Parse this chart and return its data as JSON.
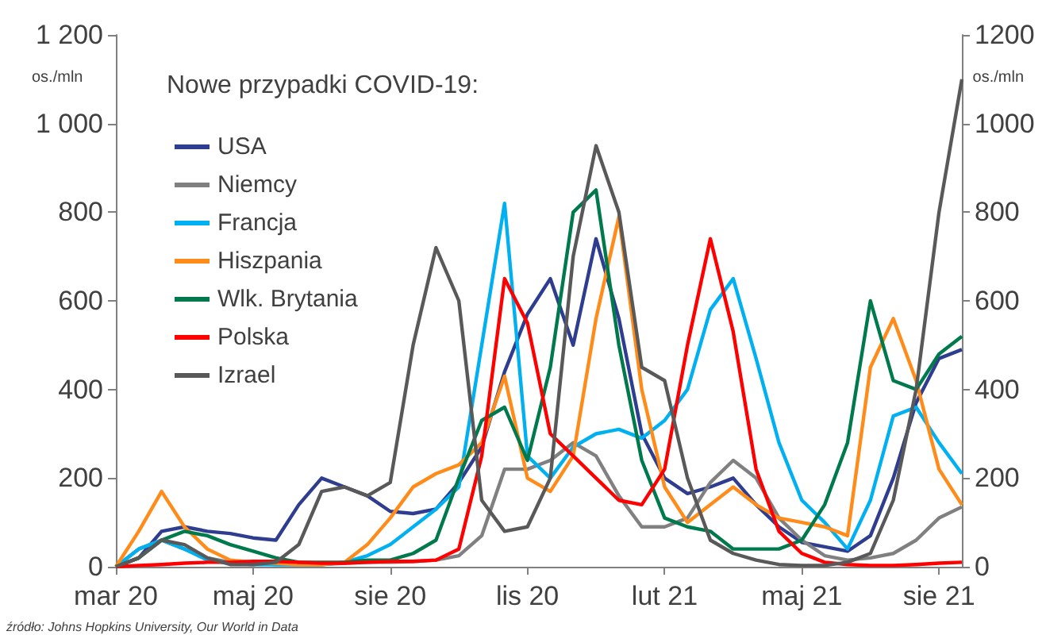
{
  "chart_data": {
    "type": "line",
    "legend_title": "Nowe przypadki COVID-19:",
    "ylabel": "os./mln",
    "y2label": "os./mln",
    "annotations": [
      "źródło: Johns Hopkins University, Our World in Data"
    ],
    "categories": [
      "mar 20",
      null,
      null,
      null,
      null,
      null,
      "maj 20",
      null,
      null,
      null,
      null,
      null,
      "sie 20",
      null,
      null,
      null,
      null,
      null,
      "lis 20",
      null,
      null,
      null,
      null,
      null,
      "lut 21",
      null,
      null,
      null,
      null,
      null,
      "maj 21",
      null,
      null,
      null,
      null,
      null,
      "sie 21",
      null
    ],
    "ylim": [
      0,
      1200
    ],
    "yticks": [
      0,
      200,
      400,
      600,
      800,
      {
        "value": 1000,
        "label": "1 000"
      },
      {
        "value": 1200,
        "label": "1 200"
      }
    ],
    "y2lim": [
      0,
      1200
    ],
    "y2ticks": [
      0,
      200,
      400,
      600,
      800,
      1000,
      1200
    ],
    "grid": false,
    "legend": "top left",
    "series": [
      {
        "name": "USA",
        "color": "#2e3d8f",
        "values": [
          0,
          20,
          80,
          90,
          80,
          75,
          65,
          60,
          140,
          200,
          180,
          160,
          125,
          120,
          130,
          190,
          270,
          440,
          570,
          650,
          500,
          740,
          560,
          300,
          200,
          165,
          180,
          200,
          140,
          90,
          55,
          45,
          35,
          70,
          200,
          370,
          470,
          490
        ]
      },
      {
        "name": "Niemcy",
        "color": "#808080",
        "values": [
          0,
          40,
          60,
          40,
          20,
          10,
          8,
          5,
          5,
          5,
          8,
          10,
          10,
          12,
          15,
          25,
          70,
          220,
          220,
          240,
          280,
          250,
          160,
          90,
          90,
          110,
          190,
          240,
          200,
          110,
          60,
          25,
          15,
          20,
          30,
          60,
          110,
          135
        ]
      },
      {
        "name": "Francja",
        "color": "#00b0f0",
        "values": [
          0,
          40,
          60,
          40,
          15,
          8,
          5,
          5,
          5,
          5,
          10,
          25,
          50,
          90,
          130,
          180,
          500,
          820,
          250,
          200,
          270,
          300,
          310,
          290,
          330,
          400,
          580,
          650,
          470,
          280,
          150,
          100,
          40,
          150,
          340,
          360,
          280,
          210
        ]
      },
      {
        "name": "Hiszpania",
        "color": "#ff8c1a",
        "values": [
          0,
          80,
          170,
          90,
          40,
          15,
          10,
          8,
          5,
          5,
          10,
          50,
          110,
          180,
          210,
          230,
          280,
          430,
          200,
          170,
          250,
          560,
          790,
          400,
          180,
          100,
          140,
          180,
          140,
          110,
          100,
          90,
          70,
          450,
          560,
          420,
          220,
          140
        ]
      },
      {
        "name": "Wlk. Brytania",
        "color": "#007a4d",
        "values": [
          0,
          20,
          60,
          80,
          70,
          50,
          35,
          20,
          10,
          10,
          10,
          15,
          15,
          30,
          60,
          200,
          330,
          360,
          240,
          450,
          800,
          850,
          500,
          240,
          110,
          90,
          80,
          40,
          40,
          40,
          60,
          140,
          280,
          600,
          420,
          400,
          480,
          520
        ]
      },
      {
        "name": "Polska",
        "color": "#ff0000",
        "values": [
          0,
          3,
          5,
          8,
          10,
          10,
          12,
          12,
          10,
          8,
          8,
          10,
          12,
          12,
          15,
          40,
          250,
          650,
          550,
          300,
          250,
          200,
          150,
          140,
          220,
          500,
          740,
          530,
          220,
          80,
          30,
          10,
          5,
          3,
          3,
          5,
          8,
          10
        ]
      },
      {
        "name": "Izrael",
        "color": "#595959",
        "values": [
          0,
          20,
          60,
          50,
          20,
          5,
          5,
          10,
          50,
          170,
          180,
          160,
          190,
          500,
          720,
          600,
          150,
          80,
          90,
          200,
          700,
          950,
          800,
          450,
          420,
          200,
          60,
          30,
          15,
          5,
          3,
          3,
          10,
          30,
          150,
          400,
          800,
          1100
        ]
      }
    ]
  }
}
